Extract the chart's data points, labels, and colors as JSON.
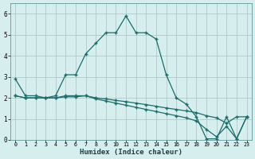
{
  "xlabel": "Humidex (Indice chaleur)",
  "xlim": [
    -0.5,
    23.5
  ],
  "ylim": [
    0,
    6.5
  ],
  "yticks": [
    0,
    1,
    2,
    3,
    4,
    5,
    6
  ],
  "xticks": [
    0,
    1,
    2,
    3,
    4,
    5,
    6,
    7,
    8,
    9,
    10,
    11,
    12,
    13,
    14,
    15,
    16,
    17,
    18,
    19,
    20,
    21,
    22,
    23
  ],
  "bg_color": "#d6eeee",
  "grid_color": "#b0c8c8",
  "line_color": "#1a6e6a",
  "series": [
    {
      "x": [
        0,
        1,
        2,
        3,
        4,
        5,
        6,
        7,
        8,
        9,
        10,
        11,
        12,
        13,
        14,
        15,
        16,
        17,
        18,
        19,
        20,
        21,
        22,
        23
      ],
      "y": [
        2.9,
        2.1,
        2.1,
        2.0,
        2.1,
        3.1,
        3.1,
        4.1,
        4.6,
        5.1,
        5.1,
        5.9,
        5.1,
        5.1,
        4.8,
        3.1,
        2.0,
        1.7,
        1.1,
        0.05,
        0.05,
        1.1,
        0.05,
        1.1
      ]
    },
    {
      "x": [
        0,
        1,
        2,
        3,
        4,
        5,
        6,
        7,
        8,
        9,
        10,
        11,
        12,
        13,
        14,
        15,
        16,
        17,
        18,
        19,
        20,
        21,
        22,
        23
      ],
      "y": [
        2.1,
        2.0,
        2.0,
        2.0,
        2.0,
        2.1,
        2.1,
        2.1,
        2.0,
        1.95,
        1.88,
        1.82,
        1.75,
        1.68,
        1.6,
        1.52,
        1.45,
        1.38,
        1.3,
        1.15,
        1.05,
        0.8,
        1.1,
        1.1
      ]
    },
    {
      "x": [
        0,
        1,
        2,
        3,
        4,
        5,
        6,
        7,
        8,
        9,
        10,
        11,
        12,
        13,
        14,
        15,
        16,
        17,
        18,
        19,
        20,
        21,
        22,
        23
      ],
      "y": [
        2.1,
        2.0,
        2.0,
        2.0,
        2.0,
        2.05,
        2.05,
        2.1,
        1.95,
        1.85,
        1.75,
        1.65,
        1.55,
        1.45,
        1.35,
        1.25,
        1.15,
        1.05,
        0.9,
        0.5,
        0.15,
        0.65,
        0.05,
        1.1
      ]
    }
  ]
}
